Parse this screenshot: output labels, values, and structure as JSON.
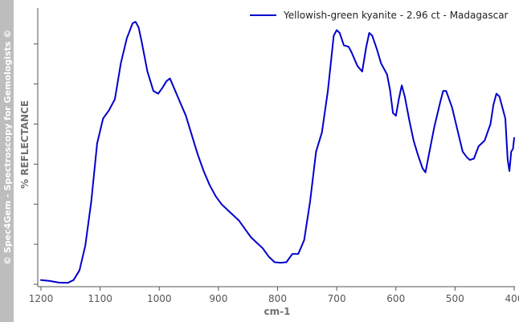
{
  "watermark": "© Spec4Gem - Spectroscopy for Gemologists ©",
  "chart_data": {
    "type": "line",
    "title": "",
    "xlabel": "cm-1",
    "ylabel": "% REFLECTANCE",
    "xlim": [
      1200,
      400
    ],
    "x_reversed": true,
    "x_ticks": [
      1200,
      1100,
      1000,
      900,
      800,
      700,
      600,
      500,
      400
    ],
    "x_tick_labels": [
      "1200",
      "1100",
      "1000",
      "900",
      "800",
      "700",
      "600",
      "500",
      "400"
    ],
    "ylim": [
      0,
      100
    ],
    "y_ticks_unlabeled": [
      0,
      14.5,
      29,
      43.5,
      58,
      72.5,
      87,
      101.5
    ],
    "grid": false,
    "legend_position": "top-right",
    "series": [
      {
        "name": "Yellowish-green kyanite - 2.96 ct - Madagascar",
        "color": "#0000cc",
        "x": [
          1200,
          1185,
          1170,
          1155,
          1145,
          1135,
          1125,
          1115,
          1105,
          1095,
          1085,
          1075,
          1065,
          1055,
          1045,
          1040,
          1035,
          1030,
          1020,
          1010,
          1002,
          995,
          988,
          982,
          975,
          965,
          955,
          945,
          935,
          925,
          915,
          905,
          895,
          885,
          875,
          865,
          855,
          845,
          835,
          825,
          815,
          805,
          795,
          785,
          775,
          765,
          755,
          745,
          735,
          725,
          715,
          705,
          700,
          695,
          688,
          680,
          675,
          665,
          657,
          650,
          645,
          640,
          632,
          625,
          615,
          610,
          605,
          600,
          595,
          590,
          585,
          577,
          570,
          563,
          555,
          550,
          545,
          535,
          525,
          520,
          515,
          505,
          495,
          487,
          480,
          475,
          468,
          460,
          450,
          440,
          435,
          430,
          425,
          420,
          415,
          411,
          408,
          405,
          402,
          400
        ],
        "y": [
          1.5,
          1.2,
          0.6,
          0.5,
          1.5,
          5,
          14,
          30,
          51,
          60,
          63,
          67,
          80,
          89,
          94.5,
          95,
          93,
          88,
          77,
          70,
          69,
          71,
          73.5,
          74.5,
          71,
          66,
          61,
          54,
          47,
          41,
          36,
          32,
          29,
          27,
          25,
          23,
          20,
          17,
          15,
          13,
          10,
          8,
          7.8,
          8,
          11,
          11,
          16,
          30,
          48,
          55,
          70,
          90,
          92,
          91,
          86.5,
          86,
          84,
          79,
          77,
          86,
          91,
          90,
          85,
          80,
          76,
          70.5,
          62,
          61,
          67,
          72,
          68,
          59,
          52,
          47,
          42,
          40.5,
          46,
          57,
          66,
          70,
          70,
          64,
          55,
          48,
          46,
          45,
          45.5,
          50,
          52,
          58,
          65,
          69,
          68,
          64,
          60,
          45,
          41,
          48,
          49,
          53
        ]
      }
    ]
  }
}
